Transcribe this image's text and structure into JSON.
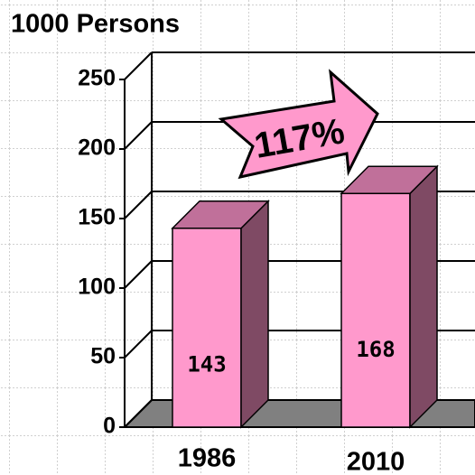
{
  "chart_data": {
    "type": "bar",
    "title": "1000 Persons",
    "categories": [
      "1986",
      "2010"
    ],
    "values": [
      143,
      168
    ],
    "color": "#ff99cc",
    "top_color": "#c0709a",
    "side_color": "#7f4a64",
    "floor_color": "#808080",
    "ylim": [
      0,
      250
    ],
    "yticks": [
      0,
      50,
      100,
      150,
      200,
      250
    ],
    "grid": true,
    "annotation": "117%"
  }
}
